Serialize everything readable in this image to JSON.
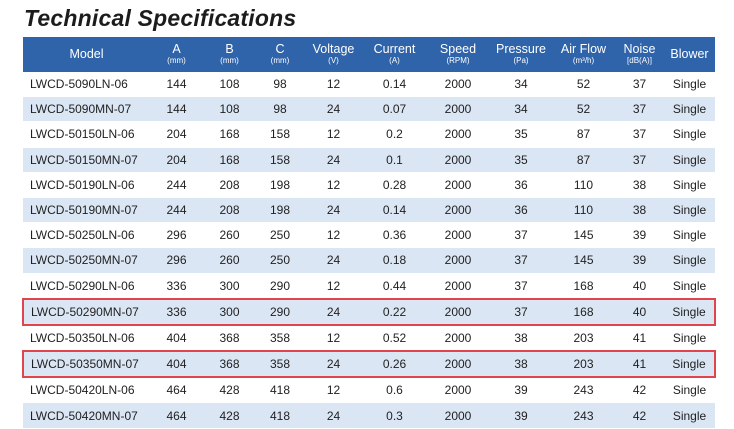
{
  "title": "Technical Specifications",
  "headers": [
    {
      "label": "Model",
      "unit": ""
    },
    {
      "label": "A",
      "unit": "(mm)"
    },
    {
      "label": "B",
      "unit": "(mm)"
    },
    {
      "label": "C",
      "unit": "(mm)"
    },
    {
      "label": "Voltage",
      "unit": "(V)"
    },
    {
      "label": "Current",
      "unit": "(A)"
    },
    {
      "label": "Speed",
      "unit": "(RPM)"
    },
    {
      "label": "Pressure",
      "unit": "(Pa)"
    },
    {
      "label": "Air Flow",
      "unit": "(m³/h)"
    },
    {
      "label": "Noise",
      "unit": "[dB(A)]"
    },
    {
      "label": "Blower",
      "unit": ""
    }
  ],
  "rows": [
    [
      "LWCD-5090LN-06",
      "144",
      "108",
      "98",
      "12",
      "0.14",
      "2000",
      "34",
      "52",
      "37",
      "Single"
    ],
    [
      "LWCD-5090MN-07",
      "144",
      "108",
      "98",
      "24",
      "0.07",
      "2000",
      "34",
      "52",
      "37",
      "Single"
    ],
    [
      "LWCD-50150LN-06",
      "204",
      "168",
      "158",
      "12",
      "0.2",
      "2000",
      "35",
      "87",
      "37",
      "Single"
    ],
    [
      "LWCD-50150MN-07",
      "204",
      "168",
      "158",
      "24",
      "0.1",
      "2000",
      "35",
      "87",
      "37",
      "Single"
    ],
    [
      "LWCD-50190LN-06",
      "244",
      "208",
      "198",
      "12",
      "0.28",
      "2000",
      "36",
      "110",
      "38",
      "Single"
    ],
    [
      "LWCD-50190MN-07",
      "244",
      "208",
      "198",
      "24",
      "0.14",
      "2000",
      "36",
      "110",
      "38",
      "Single"
    ],
    [
      "LWCD-50250LN-06",
      "296",
      "260",
      "250",
      "12",
      "0.36",
      "2000",
      "37",
      "145",
      "39",
      "Single"
    ],
    [
      "LWCD-50250MN-07",
      "296",
      "260",
      "250",
      "24",
      "0.18",
      "2000",
      "37",
      "145",
      "39",
      "Single"
    ],
    [
      "LWCD-50290LN-06",
      "336",
      "300",
      "290",
      "12",
      "0.44",
      "2000",
      "37",
      "168",
      "40",
      "Single"
    ],
    [
      "LWCD-50290MN-07",
      "336",
      "300",
      "290",
      "24",
      "0.22",
      "2000",
      "37",
      "168",
      "40",
      "Single"
    ],
    [
      "LWCD-50350LN-06",
      "404",
      "368",
      "358",
      "12",
      "0.52",
      "2000",
      "38",
      "203",
      "41",
      "Single"
    ],
    [
      "LWCD-50350MN-07",
      "404",
      "368",
      "358",
      "24",
      "0.26",
      "2000",
      "38",
      "203",
      "41",
      "Single"
    ],
    [
      "LWCD-50420LN-06",
      "464",
      "428",
      "418",
      "12",
      "0.6",
      "2000",
      "39",
      "243",
      "42",
      "Single"
    ],
    [
      "LWCD-50420MN-07",
      "464",
      "428",
      "418",
      "24",
      "0.3",
      "2000",
      "39",
      "243",
      "42",
      "Single"
    ]
  ],
  "highlighted_models": [
    "LWCD-50290MN-07",
    "LWCD-50350MN-07"
  ],
  "colors": {
    "header_bg": "#2f63aa",
    "stripe": "#dbe6f4",
    "highlight": "#e0454d"
  }
}
